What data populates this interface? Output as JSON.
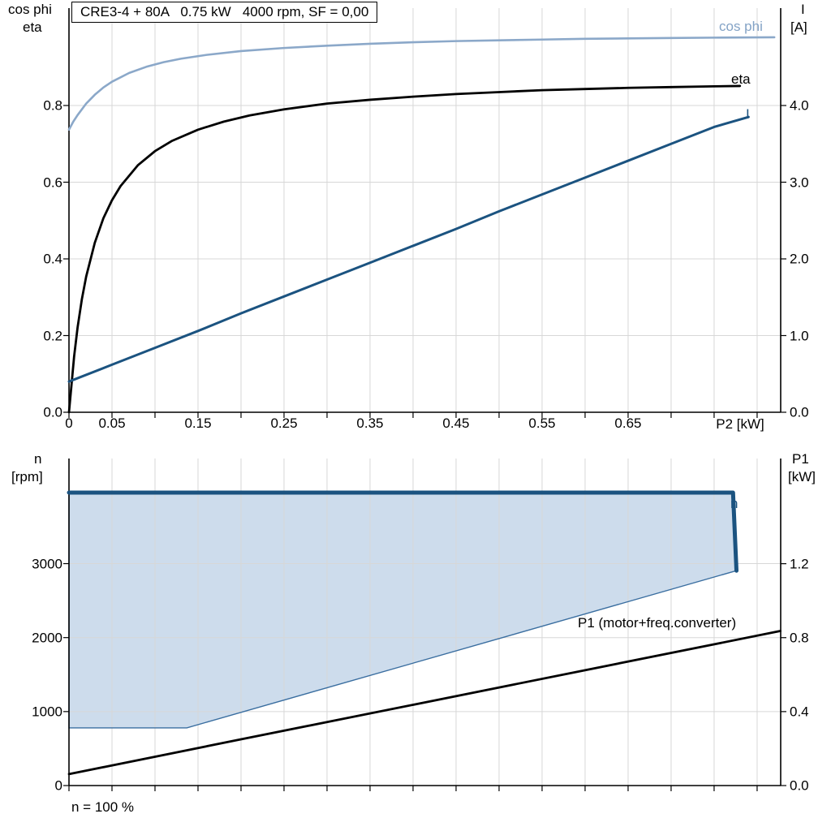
{
  "chart_data": [
    {
      "type": "line",
      "title": "CRE3-4 + 80A   0.75 kW   4000 rpm, SF = 0,00",
      "x_axis": {
        "label": "P2 [kW]",
        "min": 0,
        "max": 0.8274,
        "ticks": [
          {
            "v": 0,
            "label": "0"
          },
          {
            "v": 0.05,
            "label": "0.05"
          },
          {
            "v": 0.15,
            "label": "0.15"
          },
          {
            "v": 0.25,
            "label": "0.25"
          },
          {
            "v": 0.35,
            "label": "0.35"
          },
          {
            "v": 0.45,
            "label": "0.45"
          },
          {
            "v": 0.55,
            "label": "0.55"
          },
          {
            "v": 0.65,
            "label": "0.65"
          }
        ],
        "minor_tick_step": 0.05,
        "grid": true
      },
      "y_left": {
        "title_lines": [
          "cos phi",
          "eta"
        ],
        "min": 0,
        "max": 1.054,
        "ticks": [
          {
            "v": 0,
            "label": "0.0"
          },
          {
            "v": 0.2,
            "label": "0.2"
          },
          {
            "v": 0.4,
            "label": "0.4"
          },
          {
            "v": 0.6,
            "label": "0.6"
          },
          {
            "v": 0.8,
            "label": "0.8"
          }
        ]
      },
      "y_right": {
        "title_lines": [
          "I",
          "[A]"
        ],
        "min": 0,
        "max": 5.27,
        "ticks": [
          {
            "v": 0,
            "label": "0.0"
          },
          {
            "v": 1,
            "label": "1.0"
          },
          {
            "v": 2,
            "label": "2.0"
          },
          {
            "v": 3,
            "label": "3.0"
          },
          {
            "v": 4,
            "label": "4.0"
          }
        ]
      },
      "series": [
        {
          "name": "cos phi",
          "axis": "left",
          "color": "#8BA8C9",
          "width": 2.6,
          "points": [
            [
              0,
              0.737
            ],
            [
              0.005,
              0.758
            ],
            [
              0.01,
              0.775
            ],
            [
              0.02,
              0.805
            ],
            [
              0.03,
              0.828
            ],
            [
              0.04,
              0.847
            ],
            [
              0.05,
              0.862
            ],
            [
              0.07,
              0.885
            ],
            [
              0.09,
              0.901
            ],
            [
              0.11,
              0.913
            ],
            [
              0.13,
              0.922
            ],
            [
              0.16,
              0.932
            ],
            [
              0.2,
              0.942
            ],
            [
              0.25,
              0.95
            ],
            [
              0.3,
              0.956
            ],
            [
              0.35,
              0.961
            ],
            [
              0.4,
              0.965
            ],
            [
              0.45,
              0.968
            ],
            [
              0.5,
              0.97
            ],
            [
              0.55,
              0.972
            ],
            [
              0.6,
              0.974
            ],
            [
              0.65,
              0.975
            ],
            [
              0.7,
              0.976
            ],
            [
              0.75,
              0.977
            ],
            [
              0.82,
              0.978
            ]
          ]
        },
        {
          "name": "eta",
          "axis": "left",
          "color": "#000000",
          "width": 2.8,
          "points": [
            [
              0,
              0
            ],
            [
              0.003,
              0.073
            ],
            [
              0.006,
              0.146
            ],
            [
              0.01,
              0.221
            ],
            [
              0.015,
              0.295
            ],
            [
              0.02,
              0.354
            ],
            [
              0.03,
              0.442
            ],
            [
              0.04,
              0.506
            ],
            [
              0.05,
              0.553
            ],
            [
              0.06,
              0.59
            ],
            [
              0.08,
              0.644
            ],
            [
              0.1,
              0.681
            ],
            [
              0.12,
              0.708
            ],
            [
              0.15,
              0.737
            ],
            [
              0.18,
              0.758
            ],
            [
              0.21,
              0.774
            ],
            [
              0.25,
              0.79
            ],
            [
              0.3,
              0.805
            ],
            [
              0.35,
              0.815
            ],
            [
              0.4,
              0.823
            ],
            [
              0.45,
              0.83
            ],
            [
              0.5,
              0.835
            ],
            [
              0.55,
              0.84
            ],
            [
              0.6,
              0.843
            ],
            [
              0.65,
              0.846
            ],
            [
              0.7,
              0.848
            ],
            [
              0.75,
              0.85
            ],
            [
              0.78,
              0.851
            ]
          ]
        },
        {
          "name": "I",
          "axis": "right",
          "color": "#1B5380",
          "width": 3,
          "points": [
            [
              0,
              0.4
            ],
            [
              0.05,
              0.62
            ],
            [
              0.1,
              0.84
            ],
            [
              0.15,
              1.06
            ],
            [
              0.2,
              1.29
            ],
            [
              0.25,
              1.51
            ],
            [
              0.3,
              1.73
            ],
            [
              0.35,
              1.95
            ],
            [
              0.4,
              2.17
            ],
            [
              0.45,
              2.39
            ],
            [
              0.5,
              2.62
            ],
            [
              0.55,
              2.84
            ],
            [
              0.6,
              3.06
            ],
            [
              0.65,
              3.28
            ],
            [
              0.7,
              3.5
            ],
            [
              0.75,
              3.72
            ],
            [
              0.79,
              3.85
            ]
          ]
        }
      ]
    },
    {
      "type": "line-area",
      "x_axis": {
        "min": 0,
        "max": 0.8274,
        "minor_tick_step": 0.05,
        "grid": true
      },
      "y_left": {
        "title_lines": [
          "n",
          "[rpm]"
        ],
        "min": 0,
        "max": 4421,
        "ticks": [
          {
            "v": 0,
            "label": "0"
          },
          {
            "v": 1000,
            "label": "1000"
          },
          {
            "v": 2000,
            "label": "2000"
          },
          {
            "v": 3000,
            "label": "3000"
          }
        ]
      },
      "y_right": {
        "title_lines": [
          "P1",
          "[kW]"
        ],
        "min": 0,
        "max": 1.769,
        "ticks": [
          {
            "v": 0,
            "label": "0.0"
          },
          {
            "v": 0.4,
            "label": "0.4"
          },
          {
            "v": 0.8,
            "label": "0.8"
          },
          {
            "v": 1.2,
            "label": "1.2"
          }
        ]
      },
      "region": {
        "label": "n",
        "label_color": "#1B5380",
        "fill": "#CDDCEC",
        "border_color": "#3A6EA0",
        "top_edge_color": "#1B5380",
        "speed_max_rpm": 3960,
        "speed_min_rpm": 780,
        "points": [
          [
            0,
            3960
          ],
          [
            0.772,
            3960
          ],
          [
            0.776,
            2905
          ],
          [
            0.137,
            780
          ],
          [
            0,
            780
          ]
        ]
      },
      "series": [
        {
          "name": "P1 (motor+freq.converter)",
          "axis": "right",
          "color": "#000000",
          "width": 2.8,
          "points": [
            [
              0,
              0.062
            ],
            [
              0.2,
              0.25
            ],
            [
              0.4,
              0.437
            ],
            [
              0.6,
              0.624
            ],
            [
              0.827,
              0.836
            ]
          ]
        }
      ],
      "footnote": "n = 100 %"
    }
  ]
}
